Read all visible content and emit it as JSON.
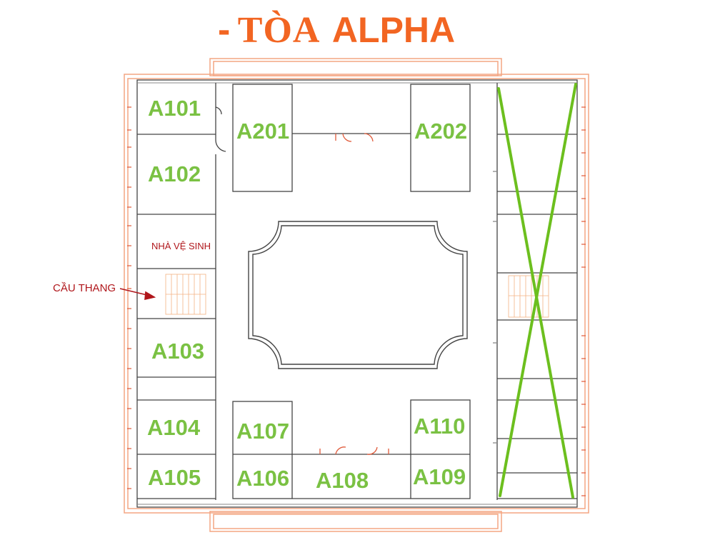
{
  "title": {
    "dash": "-",
    "toa": "TÒA",
    "alpha": "ALPHA"
  },
  "rooms": {
    "a101": "A101",
    "a102": "A102",
    "a103": "A103",
    "a104": "A104",
    "a105": "A105",
    "a106": "A106",
    "a107": "A107",
    "a108": "A108",
    "a109": "A109",
    "a110": "A110",
    "a201": "A201",
    "a202": "A202"
  },
  "restroom_label": "NHÀ VỆ SINH",
  "stairs_label": "CẦU THANG",
  "colors": {
    "title": "#f26522",
    "room_label": "#7ac143",
    "annotation": "#b0161b",
    "outer_wall": "#f4a582",
    "wall": "#444444",
    "cross_mark": "#6cbf1e"
  }
}
